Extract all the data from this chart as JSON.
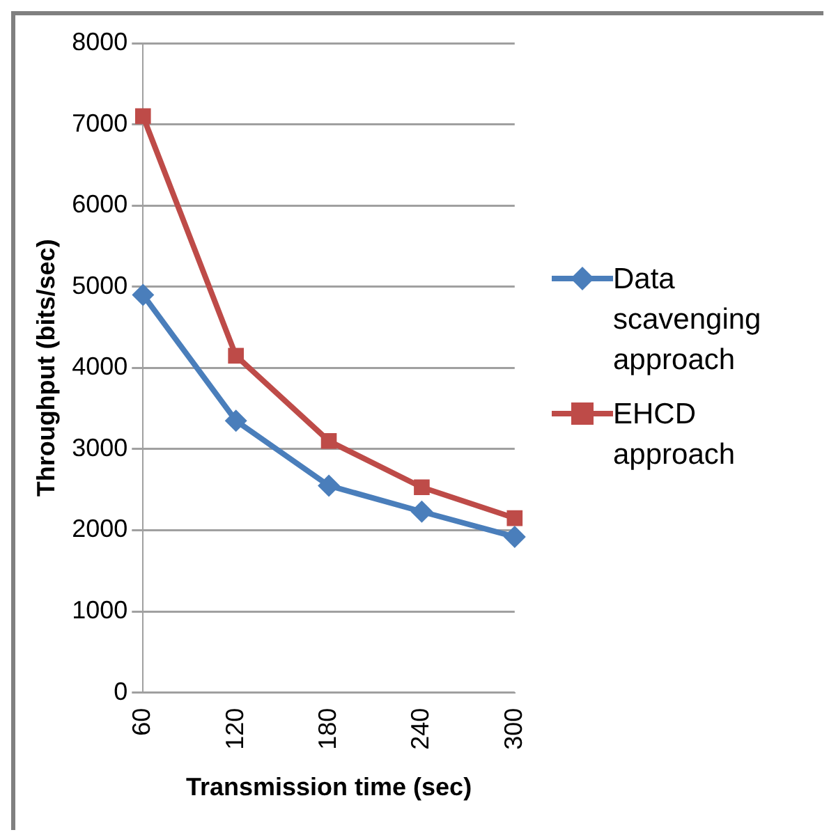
{
  "chart_data": {
    "type": "line",
    "xlabel": "Transmission time (sec)",
    "ylabel": "Throughput (bits/sec)",
    "categories": [
      "60",
      "120",
      "180",
      "240",
      "300"
    ],
    "series": [
      {
        "name": "Data scavenging approach",
        "color": "#4a7ebb",
        "values": [
          4900,
          3350,
          2550,
          2230,
          1920
        ],
        "marker": "diamond"
      },
      {
        "name": "EHCD approach",
        "color": "#be4b48",
        "values": [
          7100,
          4150,
          3100,
          2530,
          2150
        ],
        "marker": "square"
      }
    ],
    "ylim": [
      0,
      8000
    ],
    "yticks": [
      0,
      1000,
      2000,
      3000,
      4000,
      5000,
      6000,
      7000,
      8000
    ],
    "grid": "y",
    "legend": "right",
    "line_style": "solid"
  }
}
